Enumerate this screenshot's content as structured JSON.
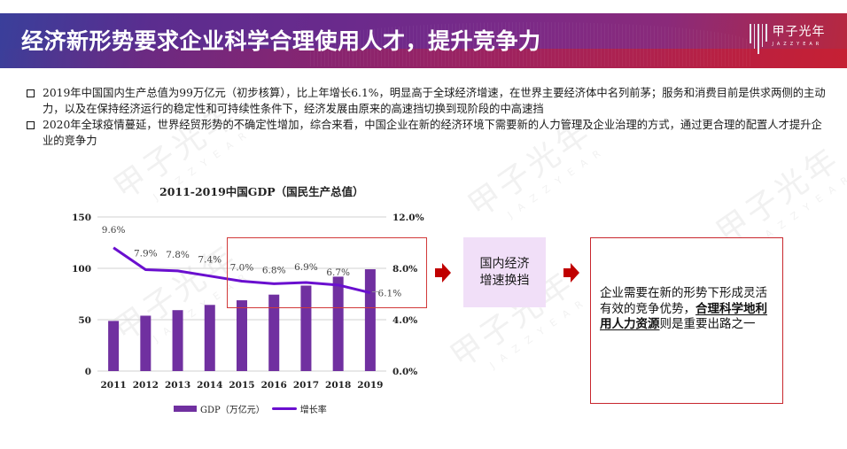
{
  "header": {
    "title": "经济新形势要求企业科学合理使用人才，提升竞争力",
    "logo_cn": "甲子光年",
    "logo_en": "JAZZYEAR"
  },
  "bullets": [
    {
      "icon": "hollow-square-bullet",
      "text": "2019年中国国内生产总值为99万亿元（初步核算），比上年增长6.1%，明显高于全球经济增速，在世界主要经济体中名列前茅；服务和消费目前是供求两侧的主动力，以及在保持经济运行的稳定性和可持续性条件下，经济发展由原来的高速挡切换到现阶段的中高速挡"
    },
    {
      "icon": "hollow-square-bullet",
      "text": "2020年全球疫情蔓延，世界经贸形势的不确定性增加，综合来看，中国企业在新的经济环境下需要新的人力管理及企业治理的方式，通过更合理的配置人才提升企业的竞争力"
    }
  ],
  "chart_data": {
    "type": "bar",
    "title": "2011-2019中国GDP（国民生产总值）",
    "categories": [
      "2011",
      "2012",
      "2013",
      "2014",
      "2015",
      "2016",
      "2017",
      "2018",
      "2019"
    ],
    "series": [
      {
        "name": "GDP（万亿元）",
        "type": "bar",
        "axis": "left",
        "color": "#7030a0",
        "values": [
          48.8,
          53.9,
          59.3,
          64.4,
          68.9,
          74.4,
          83.2,
          91.9,
          99.1
        ]
      },
      {
        "name": "增长率",
        "type": "line",
        "axis": "right",
        "color": "#6a0fcf",
        "values": [
          9.6,
          7.9,
          7.8,
          7.4,
          7.0,
          6.8,
          6.9,
          6.7,
          6.1
        ],
        "labels": [
          "9.6%",
          "7.9%",
          "7.8%",
          "7.4%",
          "7.0%",
          "6.8%",
          "6.9%",
          "6.7%",
          "6.1%"
        ]
      }
    ],
    "left_axis": {
      "ticks": [
        "0",
        "50",
        "100",
        "150"
      ],
      "ylim": [
        0,
        150
      ]
    },
    "right_axis": {
      "ticks": [
        "0.0%",
        "4.0%",
        "8.0%",
        "12.0%"
      ],
      "ylim": [
        0,
        12
      ]
    },
    "xlabel": "",
    "ylabel": "",
    "grid": true,
    "legend_position": "bottom",
    "legend": [
      "GDP（万亿元）",
      "增长率"
    ]
  },
  "flow": {
    "middle_box": {
      "line1": "国内经济",
      "line2": "增速换挡"
    },
    "right_box": {
      "text_before": "企业需要在新的形势下形成灵活有效的竞争优势，",
      "text_emphasis": "合理科学地利用人力资源",
      "text_after": "则是重要出路之一"
    },
    "arrow_color": "#c00000"
  }
}
